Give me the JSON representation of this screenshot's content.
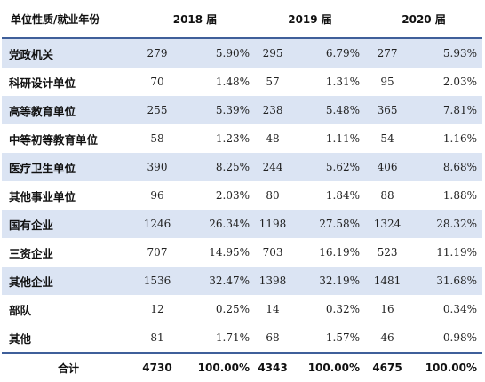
{
  "table": {
    "header": {
      "row_label": "单位性质/就业年份",
      "years": [
        "2018 届",
        "2019 届",
        "2020 届"
      ]
    },
    "rows": [
      {
        "name": "党政机关",
        "shaded": true,
        "cells": [
          "279",
          "5.90%",
          "295",
          "6.79%",
          "277",
          "5.93%"
        ]
      },
      {
        "name": "科研设计单位",
        "shaded": false,
        "cells": [
          "70",
          "1.48%",
          "57",
          "1.31%",
          "95",
          "2.03%"
        ]
      },
      {
        "name": "高等教育单位",
        "shaded": true,
        "cells": [
          "255",
          "5.39%",
          "238",
          "5.48%",
          "365",
          "7.81%"
        ]
      },
      {
        "name": "中等初等教育单位",
        "shaded": false,
        "cells": [
          "58",
          "1.23%",
          "48",
          "1.11%",
          "54",
          "1.16%"
        ]
      },
      {
        "name": "医疗卫生单位",
        "shaded": true,
        "cells": [
          "390",
          "8.25%",
          "244",
          "5.62%",
          "406",
          "8.68%"
        ]
      },
      {
        "name": "其他事业单位",
        "shaded": false,
        "cells": [
          "96",
          "2.03%",
          "80",
          "1.84%",
          "88",
          "1.88%"
        ]
      },
      {
        "name": "国有企业",
        "shaded": true,
        "cells": [
          "1246",
          "26.34%",
          "1198",
          "27.58%",
          "1324",
          "28.32%"
        ]
      },
      {
        "name": "三资企业",
        "shaded": false,
        "cells": [
          "707",
          "14.95%",
          "703",
          "16.19%",
          "523",
          "11.19%"
        ]
      },
      {
        "name": "其他企业",
        "shaded": true,
        "cells": [
          "1536",
          "32.47%",
          "1398",
          "32.19%",
          "1481",
          "31.68%"
        ]
      },
      {
        "name": "部队",
        "shaded": false,
        "cells": [
          "12",
          "0.25%",
          "14",
          "0.32%",
          "16",
          "0.34%"
        ]
      },
      {
        "name": "其他",
        "shaded": false,
        "cells": [
          "81",
          "1.71%",
          "68",
          "1.57%",
          "46",
          "0.98%"
        ]
      }
    ],
    "total": {
      "name": "合计",
      "cells": [
        "4730",
        "100.00%",
        "4343",
        "100.00%",
        "4675",
        "100.00%"
      ]
    },
    "colors": {
      "shade": "#dbe4f3",
      "rule": "#3f5f9a"
    }
  }
}
